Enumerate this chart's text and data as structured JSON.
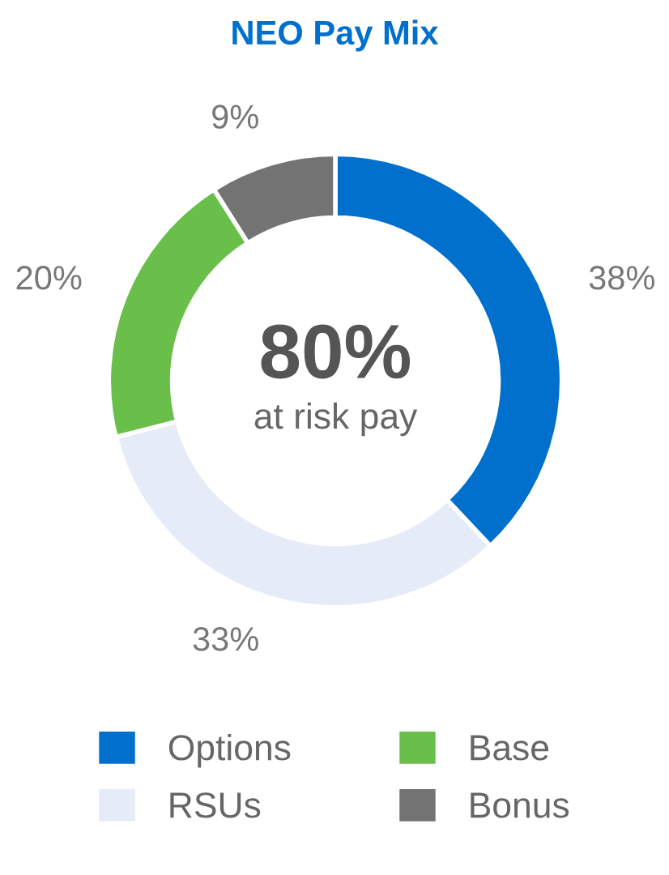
{
  "chart_data": {
    "type": "donut",
    "title": "NEO Pay Mix",
    "categories": [
      "Options",
      "RSUs",
      "Base",
      "Bonus"
    ],
    "values": [
      38,
      33,
      20,
      9
    ],
    "colors": [
      "#0070cc",
      "#e6ecf7",
      "#6abf4b",
      "#737373"
    ],
    "value_labels": [
      "38%",
      "33%",
      "20%",
      "9%"
    ],
    "annotations": [
      "80%",
      "at risk pay"
    ],
    "legend": "bottom"
  }
}
